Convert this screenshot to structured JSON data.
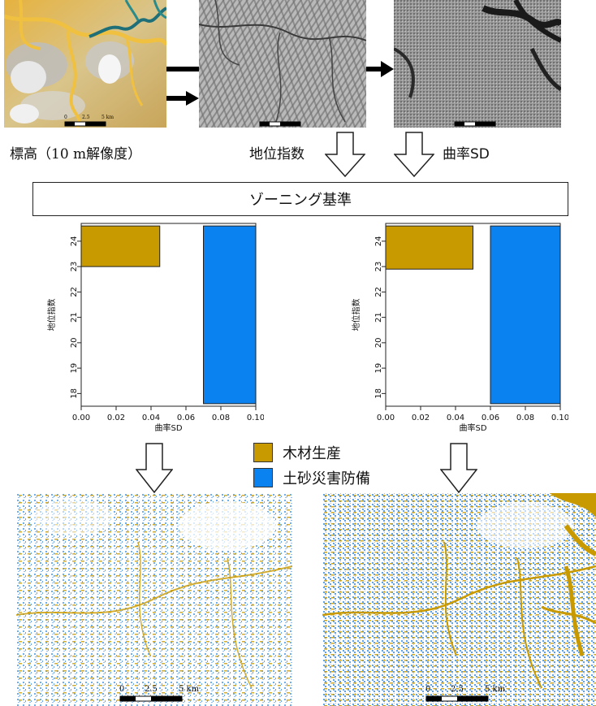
{
  "inputs": {
    "elevation_label": "標高（10 m解像度）",
    "position_index_label": "地位指数",
    "curvature_label": "曲率SD"
  },
  "criteria_box": {
    "label": "ゾーニング基準"
  },
  "scale_bars": {
    "top_left": [
      "0",
      "2.5",
      "5 km"
    ],
    "bottom": [
      "0",
      "2.5",
      "5 km"
    ]
  },
  "legend": [
    {
      "label": "木材生産",
      "color": "#c99a00"
    },
    {
      "label": "土砂災害防備",
      "color": "#0a82f0"
    }
  ],
  "chart_data": [
    {
      "type": "bar",
      "xlabel": "曲率SD",
      "ylabel": "地位指数",
      "xlim": [
        0.0,
        0.1
      ],
      "ylim": [
        17.5,
        24.7
      ],
      "xticks": [
        "0.00",
        "0.02",
        "0.04",
        "0.06",
        "0.08",
        "0.10"
      ],
      "yticks": [
        "18",
        "19",
        "20",
        "21",
        "22",
        "23",
        "24"
      ],
      "zones": [
        {
          "name": "木材生産",
          "x0": 0.0,
          "x1": 0.045,
          "y0": 23.0,
          "y1": 24.6,
          "color": "#c99a00"
        },
        {
          "name": "土砂災害防備",
          "x0": 0.07,
          "x1": 0.1,
          "y0": 17.6,
          "y1": 24.6,
          "color": "#0a82f0"
        }
      ]
    },
    {
      "type": "bar",
      "xlabel": "曲率SD",
      "ylabel": "地位指数",
      "xlim": [
        0.0,
        0.1
      ],
      "ylim": [
        17.5,
        24.7
      ],
      "xticks": [
        "0.00",
        "0.02",
        "0.04",
        "0.06",
        "0.08",
        "0.10"
      ],
      "yticks": [
        "18",
        "19",
        "20",
        "21",
        "22",
        "23",
        "24"
      ],
      "zones": [
        {
          "name": "木材生産",
          "x0": 0.0,
          "x1": 0.05,
          "y0": 22.9,
          "y1": 24.6,
          "color": "#c99a00"
        },
        {
          "name": "土砂災害防備",
          "x0": 0.06,
          "x1": 0.1,
          "y0": 17.6,
          "y1": 24.6,
          "color": "#0a82f0"
        }
      ]
    }
  ],
  "colors": {
    "timber": "#c99a00",
    "sediment": "#0a82f0",
    "elevation_low": "#e8b547",
    "elevation_high": "#f2f2f2",
    "water": "#1f6f78"
  }
}
